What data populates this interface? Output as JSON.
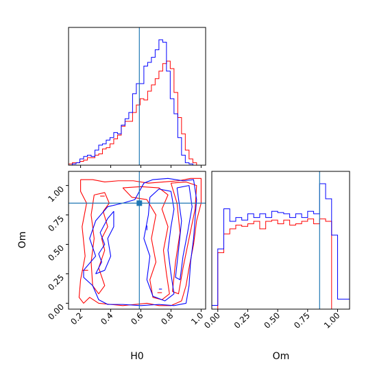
{
  "chart_data": {
    "type": "corner",
    "parameters": [
      "H0",
      "Om"
    ],
    "colors": {
      "red_run": "#ff0000",
      "blue_run": "#0000ff",
      "truth": "#1f77b4"
    },
    "truth": {
      "H0": 0.59,
      "Om": 0.85
    },
    "grid": false,
    "panels": [
      {
        "id": "hist-H0",
        "type": "step-histogram",
        "xlim": [
          0.12,
          1.03
        ],
        "ylim": [
          0,
          1.0
        ],
        "bin_edges": [
          0.12,
          0.145,
          0.17,
          0.195,
          0.22,
          0.245,
          0.27,
          0.295,
          0.32,
          0.345,
          0.37,
          0.395,
          0.42,
          0.445,
          0.47,
          0.495,
          0.52,
          0.545,
          0.57,
          0.595,
          0.62,
          0.645,
          0.67,
          0.695,
          0.72,
          0.745,
          0.77,
          0.795,
          0.82,
          0.845,
          0.87,
          0.895,
          0.92,
          0.945,
          0.97,
          0.995,
          1.02
        ],
        "series": [
          {
            "run": "red_run",
            "values": [
              0.01,
              0.02,
              0.02,
              0.03,
              0.04,
              0.06,
              0.06,
              0.08,
              0.09,
              0.13,
              0.14,
              0.17,
              0.21,
              0.24,
              0.31,
              0.35,
              0.35,
              0.42,
              0.48,
              0.53,
              0.52,
              0.59,
              0.64,
              0.69,
              0.75,
              0.81,
              0.83,
              0.77,
              0.58,
              0.38,
              0.25,
              0.12,
              0.05,
              0.02,
              0.0,
              0.0
            ]
          },
          {
            "run": "blue_run",
            "values": [
              0.0,
              0.01,
              0.02,
              0.05,
              0.07,
              0.08,
              0.07,
              0.12,
              0.16,
              0.17,
              0.2,
              0.22,
              0.26,
              0.25,
              0.32,
              0.37,
              0.42,
              0.57,
              0.65,
              0.65,
              0.79,
              0.82,
              0.86,
              0.92,
              1.0,
              0.98,
              0.75,
              0.53,
              0.41,
              0.22,
              0.08,
              0.02,
              0.01,
              0.0,
              0.0,
              0.0
            ]
          }
        ]
      },
      {
        "id": "contour-H0-Om",
        "type": "2d-contour",
        "xlabel": "H0",
        "ylabel": "Om",
        "xlim": [
          0.12,
          1.03
        ],
        "ylim": [
          -0.05,
          1.12
        ],
        "xticks": [
          "0.2",
          "0.4",
          "0.6",
          "0.8",
          "1.0"
        ],
        "yticks": [
          "0.00",
          "0.25",
          "0.50",
          "0.75",
          "1.00"
        ],
        "series": [
          {
            "run": "red_run",
            "contours": [
              [
                [
                  0.2,
                  1.05
                ],
                [
                  0.28,
                  1.05
                ],
                [
                  0.36,
                  1.03
                ],
                [
                  0.45,
                  1.04
                ],
                [
                  0.55,
                  1.04
                ],
                [
                  0.65,
                  1.02
                ],
                [
                  0.75,
                  1.03
                ],
                [
                  0.85,
                  1.04
                ],
                [
                  0.93,
                  1.06
                ],
                [
                  1.0,
                  1.06
                ],
                [
                  1.0,
                  0.85
                ],
                [
                  0.97,
                  0.7
                ],
                [
                  0.95,
                  0.5
                ],
                [
                  0.92,
                  0.3
                ],
                [
                  0.9,
                  0.15
                ],
                [
                  0.87,
                  0.02
                ],
                [
                  0.8,
                  -0.02
                ],
                [
                  0.72,
                  -0.02
                ],
                [
                  0.64,
                  0.0
                ],
                [
                  0.56,
                  -0.01
                ],
                [
                  0.48,
                  -0.02
                ],
                [
                  0.4,
                  -0.01
                ],
                [
                  0.32,
                  0.0
                ],
                [
                  0.26,
                  0.05
                ],
                [
                  0.22,
                  0.0
                ],
                [
                  0.19,
                  0.05
                ],
                [
                  0.2,
                  0.2
                ],
                [
                  0.23,
                  0.4
                ],
                [
                  0.21,
                  0.65
                ],
                [
                  0.24,
                  0.85
                ],
                [
                  0.2,
                  0.95
                ],
                [
                  0.2,
                  1.05
                ]
              ],
              [
                [
                  0.29,
                  0.92
                ],
                [
                  0.36,
                  0.94
                ],
                [
                  0.39,
                  0.85
                ],
                [
                  0.35,
                  0.78
                ],
                [
                  0.38,
                  0.65
                ],
                [
                  0.34,
                  0.55
                ],
                [
                  0.36,
                  0.45
                ],
                [
                  0.32,
                  0.3
                ],
                [
                  0.36,
                  0.15
                ],
                [
                  0.32,
                  0.08
                ],
                [
                  0.28,
                  0.15
                ],
                [
                  0.27,
                  0.35
                ],
                [
                  0.29,
                  0.55
                ],
                [
                  0.27,
                  0.75
                ],
                [
                  0.29,
                  0.92
                ]
              ],
              [
                [
                  0.48,
                  0.98
                ],
                [
                  0.6,
                  0.99
                ],
                [
                  0.72,
                  0.98
                ],
                [
                  0.78,
                  0.92
                ],
                [
                  0.74,
                  0.8
                ],
                [
                  0.78,
                  0.65
                ],
                [
                  0.75,
                  0.45
                ],
                [
                  0.77,
                  0.25
                ],
                [
                  0.79,
                  0.08
                ],
                [
                  0.74,
                  0.03
                ],
                [
                  0.68,
                  0.05
                ],
                [
                  0.66,
                  0.2
                ],
                [
                  0.7,
                  0.35
                ],
                [
                  0.67,
                  0.55
                ],
                [
                  0.7,
                  0.75
                ],
                [
                  0.64,
                  0.88
                ],
                [
                  0.54,
                  0.9
                ],
                [
                  0.48,
                  0.98
                ]
              ],
              [
                [
                  0.8,
                  1.02
                ],
                [
                  0.9,
                  1.03
                ],
                [
                  0.97,
                  1.0
                ],
                [
                  0.96,
                  0.8
                ],
                [
                  0.92,
                  0.55
                ],
                [
                  0.88,
                  0.3
                ],
                [
                  0.85,
                  0.08
                ],
                [
                  0.81,
                  0.1
                ],
                [
                  0.83,
                  0.35
                ],
                [
                  0.86,
                  0.6
                ],
                [
                  0.84,
                  0.85
                ],
                [
                  0.8,
                  1.02
                ]
              ],
              [
                [
                  0.33,
                  0.91
                ],
                [
                  0.36,
                  0.91
                ]
              ],
              [
                [
                  0.21,
                  0.28
                ],
                [
                  0.25,
                  0.28
                ]
              ],
              [
                [
                  0.71,
                  0.09
                ],
                [
                  0.74,
                  0.09
                ]
              ]
            ]
          },
          {
            "run": "blue_run",
            "contours": [
              [
                [
                  0.22,
                  0.28
                ],
                [
                  0.3,
                  0.4
                ],
                [
                  0.26,
                  0.55
                ],
                [
                  0.3,
                  0.7
                ],
                [
                  0.38,
                  0.82
                ],
                [
                  0.48,
                  0.85
                ],
                [
                  0.56,
                  0.88
                ],
                [
                  0.62,
                  1.02
                ],
                [
                  0.68,
                  1.05
                ],
                [
                  0.78,
                  1.06
                ],
                [
                  0.88,
                  1.04
                ],
                [
                  0.95,
                  1.05
                ],
                [
                  0.97,
                  0.88
                ],
                [
                  0.96,
                  0.72
                ],
                [
                  0.95,
                  0.55
                ],
                [
                  0.93,
                  0.35
                ],
                [
                  0.92,
                  0.15
                ],
                [
                  0.9,
                  0.0
                ],
                [
                  0.82,
                  -0.02
                ],
                [
                  0.72,
                  -0.01
                ],
                [
                  0.6,
                  -0.02
                ],
                [
                  0.48,
                  -0.01
                ],
                [
                  0.38,
                  -0.01
                ],
                [
                  0.32,
                  0.03
                ],
                [
                  0.28,
                  0.15
                ],
                [
                  0.22,
                  0.22
                ],
                [
                  0.22,
                  0.28
                ]
              ],
              [
                [
                  0.3,
                  0.25
                ],
                [
                  0.34,
                  0.35
                ],
                [
                  0.32,
                  0.42
                ],
                [
                  0.36,
                  0.5
                ],
                [
                  0.33,
                  0.6
                ],
                [
                  0.38,
                  0.72
                ],
                [
                  0.42,
                  0.78
                ],
                [
                  0.42,
                  0.65
                ],
                [
                  0.38,
                  0.55
                ],
                [
                  0.4,
                  0.4
                ],
                [
                  0.36,
                  0.28
                ],
                [
                  0.3,
                  0.25
                ]
              ],
              [
                [
                  0.66,
                  0.9
                ],
                [
                  0.72,
                  0.97
                ],
                [
                  0.8,
                  0.95
                ],
                [
                  0.82,
                  0.8
                ],
                [
                  0.8,
                  0.65
                ],
                [
                  0.78,
                  0.45
                ],
                [
                  0.8,
                  0.25
                ],
                [
                  0.82,
                  0.08
                ],
                [
                  0.76,
                  0.02
                ],
                [
                  0.68,
                  0.06
                ],
                [
                  0.64,
                  0.2
                ],
                [
                  0.66,
                  0.4
                ],
                [
                  0.62,
                  0.55
                ],
                [
                  0.65,
                  0.75
                ],
                [
                  0.66,
                  0.9
                ]
              ],
              [
                [
                  0.84,
                  0.98
                ],
                [
                  0.92,
                  1.0
                ],
                [
                  0.94,
                  0.82
                ],
                [
                  0.91,
                  0.6
                ],
                [
                  0.88,
                  0.4
                ],
                [
                  0.86,
                  0.2
                ],
                [
                  0.83,
                  0.22
                ],
                [
                  0.85,
                  0.45
                ],
                [
                  0.87,
                  0.7
                ],
                [
                  0.84,
                  0.98
                ]
              ],
              [
                [
                  0.64,
                  0.62
                ],
                [
                  0.64,
                  0.66
                ]
              ],
              [
                [
                  0.72,
                  0.12
                ],
                [
                  0.74,
                  0.12
                ]
              ]
            ]
          }
        ]
      },
      {
        "id": "hist-Om",
        "type": "step-histogram",
        "xlabel": "Om",
        "xlim": [
          -0.05,
          1.1
        ],
        "ylim": [
          0,
          1.0
        ],
        "xticks": [
          "0.00",
          "0.25",
          "0.50",
          "0.75",
          "1.00"
        ],
        "bin_edges": [
          -0.05,
          0.0,
          0.05,
          0.1,
          0.15,
          0.2,
          0.25,
          0.3,
          0.35,
          0.4,
          0.45,
          0.5,
          0.55,
          0.6,
          0.65,
          0.7,
          0.75,
          0.8,
          0.85,
          0.9,
          0.95,
          1.0,
          1.05,
          1.1
        ],
        "series": [
          {
            "run": "red_run",
            "values": [
              0.0,
              0.45,
              0.6,
              0.64,
              0.67,
              0.66,
              0.68,
              0.7,
              0.64,
              0.7,
              0.71,
              0.68,
              0.71,
              0.67,
              0.68,
              0.7,
              0.72,
              0.68,
              0.72,
              0.7,
              0.0,
              0.0,
              0.0
            ]
          },
          {
            "run": "blue_run",
            "values": [
              0.03,
              0.48,
              0.8,
              0.7,
              0.73,
              0.71,
              0.76,
              0.73,
              0.76,
              0.73,
              0.78,
              0.77,
              0.76,
              0.73,
              0.76,
              0.73,
              0.78,
              0.76,
              1.0,
              0.88,
              0.59,
              0.08,
              0.08
            ]
          }
        ]
      }
    ]
  }
}
